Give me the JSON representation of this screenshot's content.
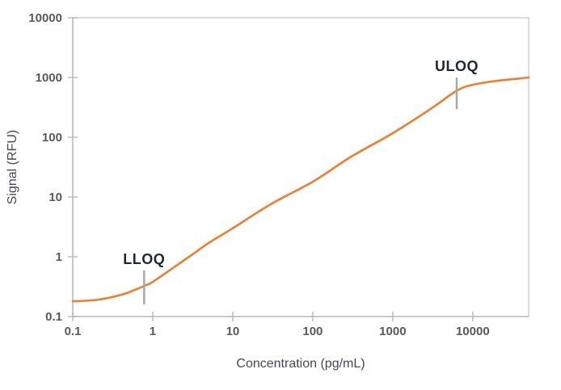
{
  "chart_data": {
    "type": "line",
    "title": "",
    "xlabel": "Concentration (pg/mL)",
    "ylabel": "Signal (RFU)",
    "x_scale": "log",
    "y_scale": "log",
    "xlim": [
      0.1,
      50000
    ],
    "ylim": [
      0.1,
      10000
    ],
    "x_ticks": [
      0.1,
      1,
      10,
      100,
      1000,
      10000
    ],
    "x_tick_labels": [
      "0.1",
      "1",
      "10",
      "100",
      "1000",
      "10000"
    ],
    "y_ticks": [
      0.1,
      1,
      10,
      100,
      1000,
      10000
    ],
    "y_tick_labels": [
      "0.1",
      "1",
      "10",
      "100",
      "1000",
      "10000"
    ],
    "grid": false,
    "legend": false,
    "series": [
      {
        "name": "calibration_curve",
        "color": "#ED7D31",
        "points": [
          [
            0.1,
            0.18
          ],
          [
            0.2,
            0.19
          ],
          [
            0.4,
            0.23
          ],
          [
            0.6,
            0.28
          ],
          [
            0.8,
            0.33
          ],
          [
            1,
            0.38
          ],
          [
            2,
            0.72
          ],
          [
            3,
            1.05
          ],
          [
            5,
            1.7
          ],
          [
            10,
            3.0
          ],
          [
            30,
            7.6
          ],
          [
            100,
            18
          ],
          [
            300,
            47
          ],
          [
            1000,
            117
          ],
          [
            3000,
            300
          ],
          [
            6300,
            600
          ],
          [
            10000,
            755
          ],
          [
            20000,
            880
          ],
          [
            50000,
            1000
          ]
        ]
      }
    ],
    "annotations": [
      {
        "label": "LLOQ",
        "x": 0.78,
        "marker_signal_range": [
          0.16,
          0.59
        ]
      },
      {
        "label": "ULOQ",
        "x": 6300,
        "marker_signal_range": [
          296,
          1000
        ]
      }
    ],
    "colors": {
      "curve": "#ED7D31",
      "frame": "#C9C9C9",
      "axis_line": "#B3B3B3",
      "tick_mark": "#B3B3B3",
      "tick_label": "#595959",
      "axis_title": "#474755",
      "annotation_text": "#1F2733",
      "annotation_marker": "#A6A6A6",
      "background": "#FFFFFF"
    }
  }
}
